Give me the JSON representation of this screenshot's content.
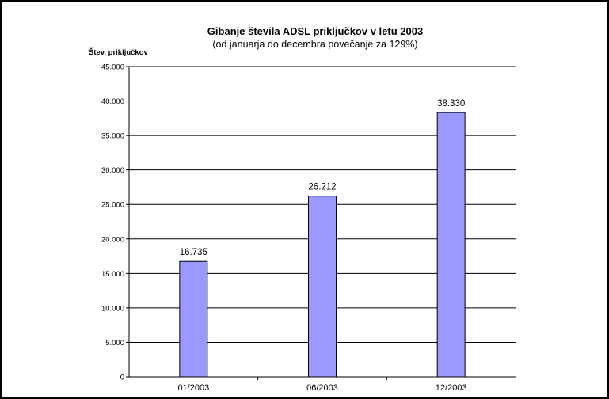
{
  "chart_data": {
    "type": "bar",
    "title": "Gibanje števila ADSL priključkov v letu 2003",
    "subtitle": "(od januarja do decembra povečanje za 129%)",
    "ylabel": "Štev. priključkov",
    "xlabel": "",
    "categories": [
      "01/2003",
      "06/2003",
      "12/2003"
    ],
    "values": [
      16735,
      26212,
      38330
    ],
    "value_labels": [
      "16.735",
      "26.212",
      "38.330"
    ],
    "ylim": [
      0,
      45000
    ],
    "y_ticks": [
      0,
      5000,
      10000,
      15000,
      20000,
      25000,
      30000,
      35000,
      40000,
      45000
    ],
    "y_tick_labels": [
      "0",
      "5.000",
      "10.000",
      "15.000",
      "20.000",
      "25.000",
      "30.000",
      "35.000",
      "40.000",
      "45.000"
    ],
    "grid": true,
    "legend": "none",
    "bar_color": "#9999ff"
  }
}
